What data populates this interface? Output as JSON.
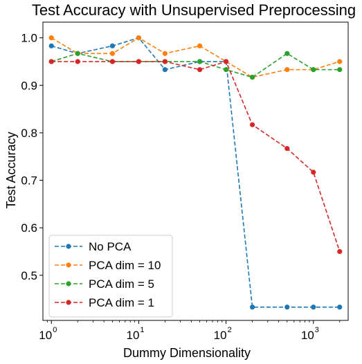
{
  "chart_data": {
    "type": "line",
    "title": "Test Accuracy with Unsupervised Preprocessing",
    "xlabel": "Dummy Dimensionality",
    "ylabel": "Test Accuracy",
    "xscale": "log",
    "xlim": [
      0.8,
      2500
    ],
    "ylim": [
      0.405,
      1.033
    ],
    "x_ticks": [
      {
        "base": "10",
        "exp": "0",
        "value": 1
      },
      {
        "base": "10",
        "exp": "1",
        "value": 10
      },
      {
        "base": "10",
        "exp": "2",
        "value": 100
      },
      {
        "base": "10",
        "exp": "3",
        "value": 1000
      }
    ],
    "y_ticks": [
      "0.5",
      "0.6",
      "0.7",
      "0.8",
      "0.9",
      "1.0"
    ],
    "x": [
      1,
      2,
      5,
      10,
      20,
      50,
      100,
      200,
      500,
      1000,
      2000
    ],
    "series": [
      {
        "name": "No PCA",
        "color": "#1f77b4",
        "values": [
          0.983,
          0.967,
          0.983,
          1.0,
          0.933,
          0.95,
          0.95,
          0.433,
          0.433,
          0.433,
          0.433
        ]
      },
      {
        "name": "PCA dim = 10",
        "color": "#ff7f0e",
        "values": [
          1.0,
          0.967,
          0.967,
          1.0,
          0.967,
          0.983,
          0.95,
          0.917,
          0.933,
          0.933,
          0.95
        ]
      },
      {
        "name": "PCA dim = 5",
        "color": "#2ca02c",
        "values": [
          0.95,
          0.967,
          0.95,
          0.95,
          0.95,
          0.95,
          0.933,
          0.917,
          0.967,
          0.933,
          0.933
        ]
      },
      {
        "name": "PCA dim = 1",
        "color": "#d62728",
        "values": [
          0.95,
          0.95,
          0.95,
          0.95,
          0.95,
          0.933,
          0.95,
          0.817,
          0.767,
          0.717,
          0.55
        ]
      }
    ],
    "line_style": "dashed",
    "marker": "circle",
    "grid": false,
    "legend_position": "lower-left"
  }
}
